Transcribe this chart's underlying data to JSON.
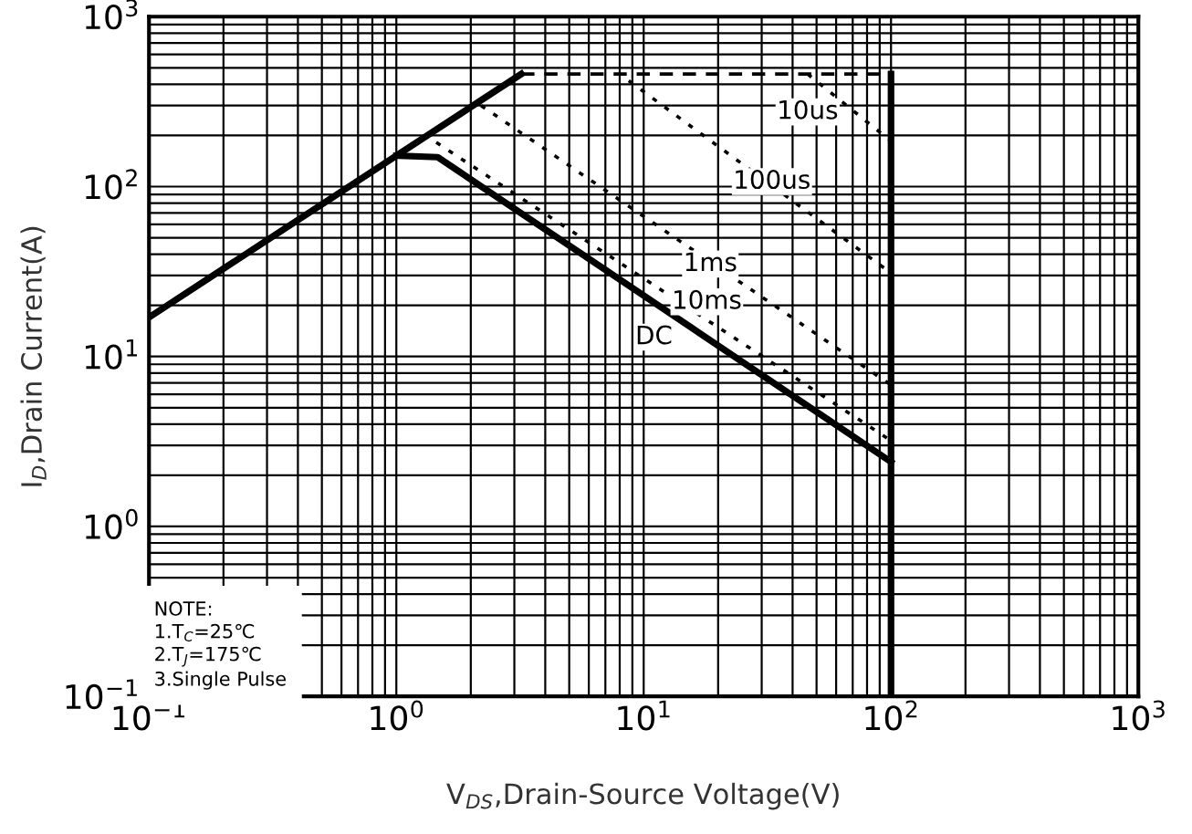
{
  "chart_data": {
    "type": "line",
    "xlabel": "V$_{DS}$,Drain-Source Voltage(V)",
    "ylabel": "I$_{D}$,Drain Current(A)",
    "log": "xy",
    "grid": true,
    "xlim": [
      0.1,
      1000
    ],
    "ylim": [
      0.1,
      1000
    ],
    "xticks": [
      {
        "value": 0.1,
        "label": "10$^{−1}$"
      },
      {
        "value": 1,
        "label": "10$^{0}$"
      },
      {
        "value": 10,
        "label": "10$^{1}$"
      },
      {
        "value": 100,
        "label": "10$^{2}$"
      },
      {
        "value": 1000,
        "label": "10$^{3}$"
      }
    ],
    "yticks": [
      {
        "value": 0.1,
        "label": "10$^{−1}$"
      },
      {
        "value": 1,
        "label": "10$^{0}$"
      },
      {
        "value": 10,
        "label": "10$^{1}$"
      },
      {
        "value": 100,
        "label": "10$^{2}$"
      },
      {
        "value": 1000,
        "label": "10$^{3}$"
      }
    ],
    "series": [
      {
        "color": "#000000",
        "line_style": "solid",
        "x": [
          0.1,
          3.2
        ],
        "values": [
          17,
          460
        ]
      },
      {
        "color": "#000000",
        "line_style": "dashed",
        "x": [
          3.2,
          100
        ],
        "values": [
          460,
          460
        ]
      },
      {
        "color": "#000000",
        "line_style": "solid",
        "x": [
          100,
          100
        ],
        "values": [
          460,
          0.1
        ]
      },
      {
        "color": "#000000",
        "line_style": "solid",
        "x": [
          1,
          1.47,
          100
        ],
        "values": [
          152,
          149,
          2.4
        ]
      },
      {
        "color": "#000000",
        "line_style": "dotted",
        "x": [
          1.45,
          100
        ],
        "values": [
          182,
          3.2
        ]
      },
      {
        "color": "#000000",
        "line_style": "dotted",
        "x": [
          2.2,
          100
        ],
        "values": [
          300,
          6.8
        ]
      },
      {
        "color": "#000000",
        "line_style": "dotted",
        "x": [
          8.7,
          100
        ],
        "values": [
          420,
          31
        ]
      },
      {
        "color": "#000000",
        "line_style": "dotted",
        "x": [
          46,
          100
        ],
        "values": [
          460,
          185
        ]
      }
    ],
    "annotations": [
      {
        "text": "10us",
        "x": 46,
        "y": 275
      },
      {
        "text": "100us",
        "x": 33,
        "y": 107
      },
      {
        "text": "1ms",
        "x": 18.6,
        "y": 35
      },
      {
        "text": "10ms",
        "x": 18,
        "y": 21
      },
      {
        "text": "DC",
        "x": 11,
        "y": 13
      },
      "NOTE:\n1.T$_{C}$=25℃\n2.T$_{J}$=175℃\n3.Single Pulse"
    ]
  }
}
